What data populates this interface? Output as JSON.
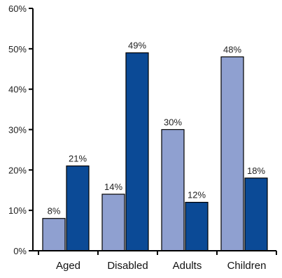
{
  "chart_data": {
    "type": "bar",
    "categories": [
      "Aged",
      "Disabled",
      "Adults",
      "Children"
    ],
    "series": [
      {
        "values": [
          8,
          14,
          30,
          48
        ],
        "labels": [
          "8%",
          "14%",
          "30%",
          "48%"
        ],
        "color": "#8fa0d0"
      },
      {
        "values": [
          21,
          49,
          12,
          18
        ],
        "labels": [
          "21%",
          "49%",
          "12%",
          "18%"
        ],
        "color": "#0b4a96"
      }
    ],
    "ylim": [
      0,
      60
    ],
    "yticks": [
      0,
      10,
      20,
      30,
      40,
      50,
      60
    ],
    "ytick_labels": [
      "0%",
      "10%",
      "20%",
      "30%",
      "40%",
      "50%",
      "60%"
    ],
    "grid": false,
    "title": "",
    "xlabel": "",
    "ylabel": ""
  }
}
